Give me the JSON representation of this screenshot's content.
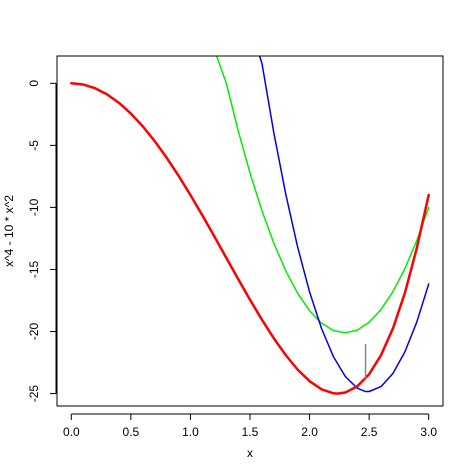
{
  "chart_data": {
    "type": "line",
    "title": "",
    "xlabel": "x",
    "ylabel": "x^4 - 10 * x^2",
    "xlim": [
      -0.12,
      3.12
    ],
    "ylim": [
      -26.0,
      2.2
    ],
    "grid": false,
    "legend": "none",
    "x_ticks": [
      {
        "value": 0,
        "label": "0.0"
      },
      {
        "value": 0.5,
        "label": "0.5"
      },
      {
        "value": 1,
        "label": "1.0"
      },
      {
        "value": 1.5,
        "label": "1.5"
      },
      {
        "value": 2,
        "label": "2.0"
      },
      {
        "value": 2.5,
        "label": "2.5"
      },
      {
        "value": 3,
        "label": "3.0"
      }
    ],
    "y_ticks": [
      {
        "value": 0,
        "label": "0"
      },
      {
        "value": -5,
        "label": "-5"
      },
      {
        "value": -10,
        "label": "-10"
      },
      {
        "value": -15,
        "label": "-15"
      },
      {
        "value": -20,
        "label": "-20"
      },
      {
        "value": -25,
        "label": "-25"
      }
    ],
    "series": [
      {
        "color": "#ff0000",
        "width": 2.5,
        "x": [
          0,
          0.1,
          0.2,
          0.3,
          0.4,
          0.5,
          0.6,
          0.7,
          0.8,
          0.9,
          1.0,
          1.1,
          1.2,
          1.3,
          1.4,
          1.5,
          1.6,
          1.7,
          1.8,
          1.9,
          2.0,
          2.1,
          2.2,
          2.236,
          2.3,
          2.4,
          2.5,
          2.6,
          2.7,
          2.8,
          2.9,
          3.0
        ],
        "y": [
          0,
          -0.1,
          -0.398,
          -0.892,
          -1.574,
          -2.438,
          -3.47,
          -4.66,
          -5.99,
          -7.444,
          -9.0,
          -10.636,
          -12.326,
          -14.044,
          -15.758,
          -17.438,
          -19.046,
          -20.548,
          -21.902,
          -23.068,
          -24.0,
          -24.652,
          -24.974,
          -25.0,
          -24.916,
          -24.422,
          -23.438,
          -21.902,
          -19.746,
          -16.898,
          -13.282,
          -9.0
        ]
      },
      {
        "color": "#00ee00",
        "width": 1.5,
        "x": [
          1.22,
          1.3,
          1.4,
          1.5,
          1.6,
          1.7,
          1.8,
          1.9,
          2.0,
          2.1,
          2.2,
          2.3,
          2.4,
          2.5,
          2.6,
          2.7,
          2.8,
          2.9,
          3.0
        ],
        "y": [
          2.2,
          0.049,
          -3.791,
          -7.228,
          -10.26,
          -12.886,
          -15.106,
          -16.92,
          -18.327,
          -19.326,
          -19.919,
          -20.104,
          -19.884,
          -19.255,
          -18.221,
          -16.778,
          -14.93,
          -12.674,
          -10.01
        ]
      },
      {
        "color": "#0000ee",
        "width": 1.5,
        "x": [
          1.58,
          1.6,
          1.7,
          1.8,
          1.9,
          2.0,
          2.1,
          2.2,
          2.3,
          2.4,
          2.47,
          2.5,
          2.6,
          2.7,
          2.8,
          2.9,
          3.0
        ],
        "y": [
          2.2,
          1.624,
          -3.984,
          -8.924,
          -13.198,
          -16.806,
          -19.746,
          -22.018,
          -23.624,
          -24.562,
          -24.833,
          -24.832,
          -24.436,
          -23.37,
          -21.638,
          -19.238,
          -16.17
        ]
      }
    ],
    "annotation_line": {
      "x": 2.47,
      "y_from": -23.9,
      "y_to": -21.0,
      "color": "#888888"
    }
  }
}
